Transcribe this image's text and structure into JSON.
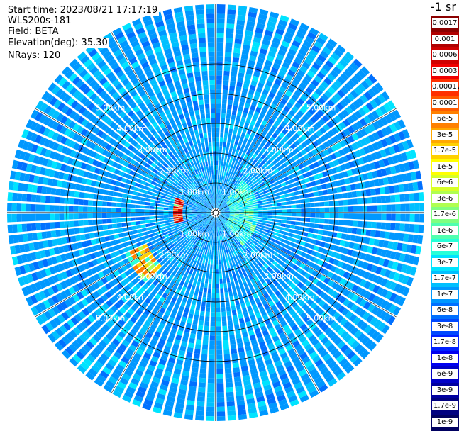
{
  "info": {
    "start_time": "Start time: 2023/08/21 17:17:19",
    "instrument": "WLS200s-181",
    "field": "Field: BETA",
    "elevation": "Elevation(deg): 35.30",
    "nrays": "NRays: 120"
  },
  "colorbar": {
    "unit": "-1 sr",
    "levels": [
      {
        "label": "0.0017",
        "color": "#8b0000"
      },
      {
        "label": "0.001",
        "color": "#b00000"
      },
      {
        "label": "0.0006",
        "color": "#d00000"
      },
      {
        "label": "0.0003",
        "color": "#f00000"
      },
      {
        "label": "0.00017",
        "color": "#ff3000"
      },
      {
        "label": "0.0001",
        "color": "#ff5a00"
      },
      {
        "label": "6e-5",
        "color": "#ff8000"
      },
      {
        "label": "3e-5",
        "color": "#ffa800"
      },
      {
        "label": "1.7e-5",
        "color": "#ffd000"
      },
      {
        "label": "1e-5",
        "color": "#ffff00"
      },
      {
        "label": "6e-6",
        "color": "#d8ff28"
      },
      {
        "label": "3e-6",
        "color": "#b0ff50"
      },
      {
        "label": "1.7e-6",
        "color": "#80ff80"
      },
      {
        "label": "1e-6",
        "color": "#50ffb0"
      },
      {
        "label": "6e-7",
        "color": "#28ffd8"
      },
      {
        "label": "3e-7",
        "color": "#00e4ff"
      },
      {
        "label": "1.7e-7",
        "color": "#00c0ff"
      },
      {
        "label": "1e-7",
        "color": "#0098ff"
      },
      {
        "label": "6e-8",
        "color": "#0070ff"
      },
      {
        "label": "3e-8",
        "color": "#0048ff"
      },
      {
        "label": "1.7e-8",
        "color": "#0020ff"
      },
      {
        "label": "1e-8",
        "color": "#0000f0"
      },
      {
        "label": "6e-9",
        "color": "#0000c8"
      },
      {
        "label": "3e-9",
        "color": "#0000a0"
      },
      {
        "label": "1.7e-9",
        "color": "#000080"
      },
      {
        "label": "1e-9",
        "color": "#000060"
      }
    ]
  },
  "chart_data": {
    "type": "heatmap",
    "projection": "polar (PPI scan)",
    "field": "BETA",
    "nrays": 120,
    "elevation_deg": 35.3,
    "range_unit": "km",
    "range_rings_km": [
      1,
      2,
      3,
      4,
      5
    ],
    "range_ring_labels": [
      "1.00km",
      "2.00km",
      "3.00km",
      "4.00km",
      "5.00km"
    ],
    "max_range_km": 7.0,
    "background_level": "1e-7 to 6e-8",
    "features": [
      {
        "description": "high backscatter arc",
        "azimuth_deg": [
          255,
          290
        ],
        "range_km": [
          1.1,
          1.4
        ],
        "level": "6e-5 to 0.0003"
      },
      {
        "description": "high backscatter band",
        "azimuth_deg": [
          225,
          245
        ],
        "range_km": [
          2.5,
          3.3
        ],
        "level": "1e-5 to 6e-5"
      },
      {
        "description": "elevated returns",
        "azimuth_deg": [
          40,
          140
        ],
        "range_km": [
          0.5,
          1.5
        ],
        "level": "6e-7 to 3e-6"
      }
    ]
  }
}
